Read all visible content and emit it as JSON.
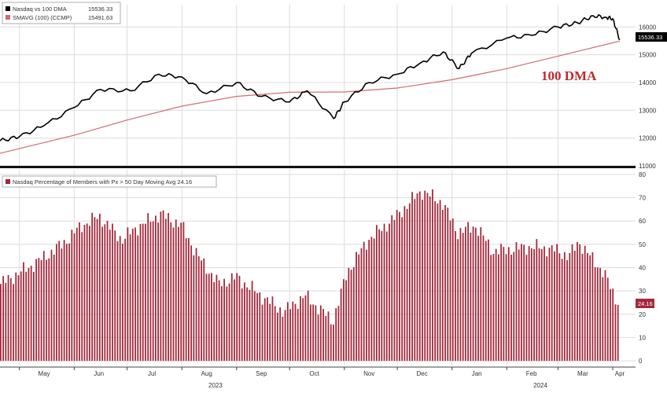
{
  "chart_data": [
    {
      "type": "line",
      "legend": [
        {
          "name": "Nasdaq vs 100 DMA",
          "value": "15536.33",
          "color": "#000000"
        },
        {
          "name": "SMAVG (100) (CCMP)",
          "value": "15491.63",
          "color": "#d06a72"
        }
      ],
      "x_range": [
        "2023-04-20",
        "2024-04-05"
      ],
      "ylim": [
        11000,
        16800
      ],
      "y_ticks": [
        "11000",
        "12000",
        "13000",
        "14000",
        "15000",
        "16000"
      ],
      "grid": true,
      "series": [
        {
          "name": "Nasdaq vs 100 DMA",
          "color": "#000000",
          "x": [
            "2023-04-20",
            "2023-05-01",
            "2023-05-15",
            "2023-06-01",
            "2023-06-16",
            "2023-07-03",
            "2023-07-19",
            "2023-08-01",
            "2023-08-15",
            "2023-09-01",
            "2023-09-15",
            "2023-10-01",
            "2023-10-11",
            "2023-10-26",
            "2023-11-01",
            "2023-11-15",
            "2023-12-01",
            "2023-12-14",
            "2023-12-27",
            "2024-01-05",
            "2024-01-12",
            "2024-02-01",
            "2024-02-15",
            "2024-03-01",
            "2024-03-12",
            "2024-03-21",
            "2024-03-28",
            "2024-04-01",
            "2024-04-05"
          ],
          "y": [
            11900,
            12050,
            12450,
            13100,
            13750,
            13700,
            14300,
            14200,
            13600,
            14000,
            13500,
            13300,
            13700,
            12700,
            13300,
            14000,
            14300,
            14700,
            15100,
            14500,
            15050,
            15600,
            15700,
            16000,
            16150,
            16400,
            16350,
            16300,
            15536
          ]
        },
        {
          "name": "SMAVG (100) (CCMP)",
          "color": "#d06a72",
          "x": [
            "2023-04-20",
            "2023-06-01",
            "2023-07-01",
            "2023-08-01",
            "2023-09-01",
            "2023-10-01",
            "2023-11-01",
            "2023-12-01",
            "2024-01-01",
            "2024-02-01",
            "2024-03-01",
            "2024-04-05"
          ],
          "y": [
            11450,
            12100,
            12650,
            13150,
            13500,
            13650,
            13660,
            13800,
            14100,
            14500,
            14950,
            15491
          ]
        }
      ],
      "last_value_label": "15536.33",
      "annotation": "100 DMA"
    },
    {
      "type": "bar",
      "legend": [
        {
          "name": "Nasdaq Percentage of Members with Px > 50 Day Moving Avg 24.16",
          "color": "#a3283a"
        }
      ],
      "x_range": [
        "2023-04-20",
        "2024-04-05"
      ],
      "ylim": [
        -2,
        82
      ],
      "y_ticks": [
        "0",
        "10",
        "20",
        "30",
        "40",
        "50",
        "60",
        "70",
        "80"
      ],
      "grid": true,
      "series_color": "#a3283a",
      "anchors": [
        {
          "x": "2023-04-20",
          "y": 33
        },
        {
          "x": "2023-05-10",
          "y": 42
        },
        {
          "x": "2023-05-25",
          "y": 50
        },
        {
          "x": "2023-06-05",
          "y": 58
        },
        {
          "x": "2023-06-15",
          "y": 62
        },
        {
          "x": "2023-06-28",
          "y": 52
        },
        {
          "x": "2023-07-06",
          "y": 57
        },
        {
          "x": "2023-07-20",
          "y": 63
        },
        {
          "x": "2023-08-01",
          "y": 58
        },
        {
          "x": "2023-08-10",
          "y": 45
        },
        {
          "x": "2023-08-22",
          "y": 33
        },
        {
          "x": "2023-09-01",
          "y": 36
        },
        {
          "x": "2023-09-15",
          "y": 28
        },
        {
          "x": "2023-09-28",
          "y": 21
        },
        {
          "x": "2023-10-10",
          "y": 28
        },
        {
          "x": "2023-10-26",
          "y": 17
        },
        {
          "x": "2023-11-03",
          "y": 38
        },
        {
          "x": "2023-11-15",
          "y": 52
        },
        {
          "x": "2023-12-01",
          "y": 62
        },
        {
          "x": "2023-12-15",
          "y": 73
        },
        {
          "x": "2023-12-27",
          "y": 68
        },
        {
          "x": "2024-01-05",
          "y": 55
        },
        {
          "x": "2024-01-15",
          "y": 58
        },
        {
          "x": "2024-01-25",
          "y": 47
        },
        {
          "x": "2024-02-05",
          "y": 48
        },
        {
          "x": "2024-02-15",
          "y": 49
        },
        {
          "x": "2024-02-28",
          "y": 48
        },
        {
          "x": "2024-03-08",
          "y": 45
        },
        {
          "x": "2024-03-14",
          "y": 51
        },
        {
          "x": "2024-03-22",
          "y": 43
        },
        {
          "x": "2024-03-28",
          "y": 38
        },
        {
          "x": "2024-04-05",
          "y": 24
        }
      ],
      "last_value_label": "24.16"
    }
  ],
  "x_axis": {
    "months": [
      {
        "label": "May",
        "date": "2023-05-15"
      },
      {
        "label": "Jun",
        "date": "2023-06-15"
      },
      {
        "label": "Jul",
        "date": "2023-07-15"
      },
      {
        "label": "Aug",
        "date": "2023-08-15"
      },
      {
        "label": "Sep",
        "date": "2023-09-15"
      },
      {
        "label": "Oct",
        "date": "2023-10-15"
      },
      {
        "label": "Nov",
        "date": "2023-11-15"
      },
      {
        "label": "Dec",
        "date": "2023-12-15"
      },
      {
        "label": "Jan",
        "date": "2024-01-15"
      },
      {
        "label": "Feb",
        "date": "2024-02-15"
      },
      {
        "label": "Mar",
        "date": "2024-03-15"
      },
      {
        "label": "Apr",
        "date": "2024-04-05"
      }
    ],
    "years": [
      {
        "label": "2023",
        "date": "2023-08-20"
      },
      {
        "label": "2024",
        "date": "2024-02-20"
      }
    ]
  }
}
